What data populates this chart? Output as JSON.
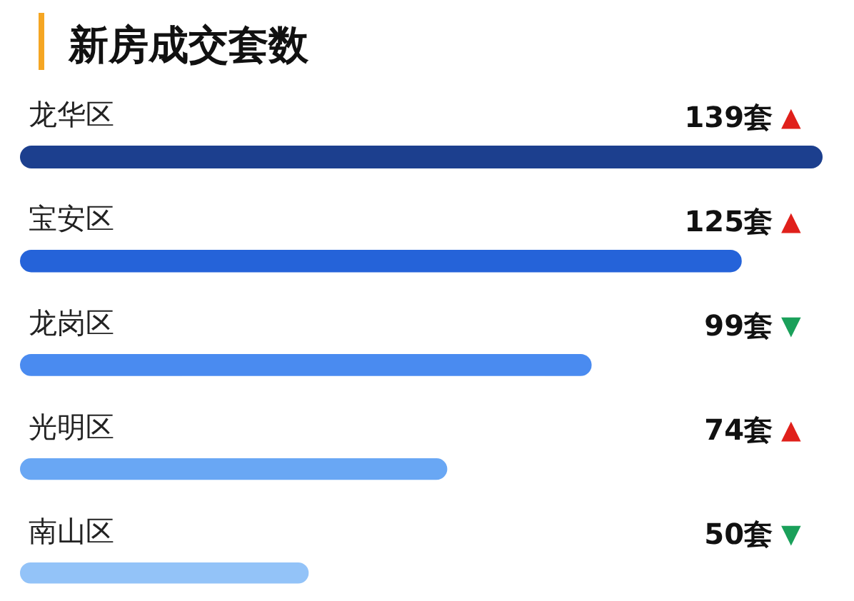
{
  "chart_data": {
    "type": "bar",
    "orientation": "horizontal",
    "title": "新房成交套数",
    "categories": [
      "龙华区",
      "宝安区",
      "龙岗区",
      "光明区",
      "南山区"
    ],
    "values": [
      139,
      125,
      99,
      74,
      50
    ],
    "colors": [
      "#1c3f8e",
      "#2563d9",
      "#4a8bf0",
      "#69a7f4",
      "#93c3f8"
    ],
    "value_labels": [
      "139套",
      "125套",
      "99套",
      "74套",
      "50套"
    ],
    "annotations": [
      "▲",
      "▲",
      "▼",
      "▲",
      "▼"
    ]
  }
}
